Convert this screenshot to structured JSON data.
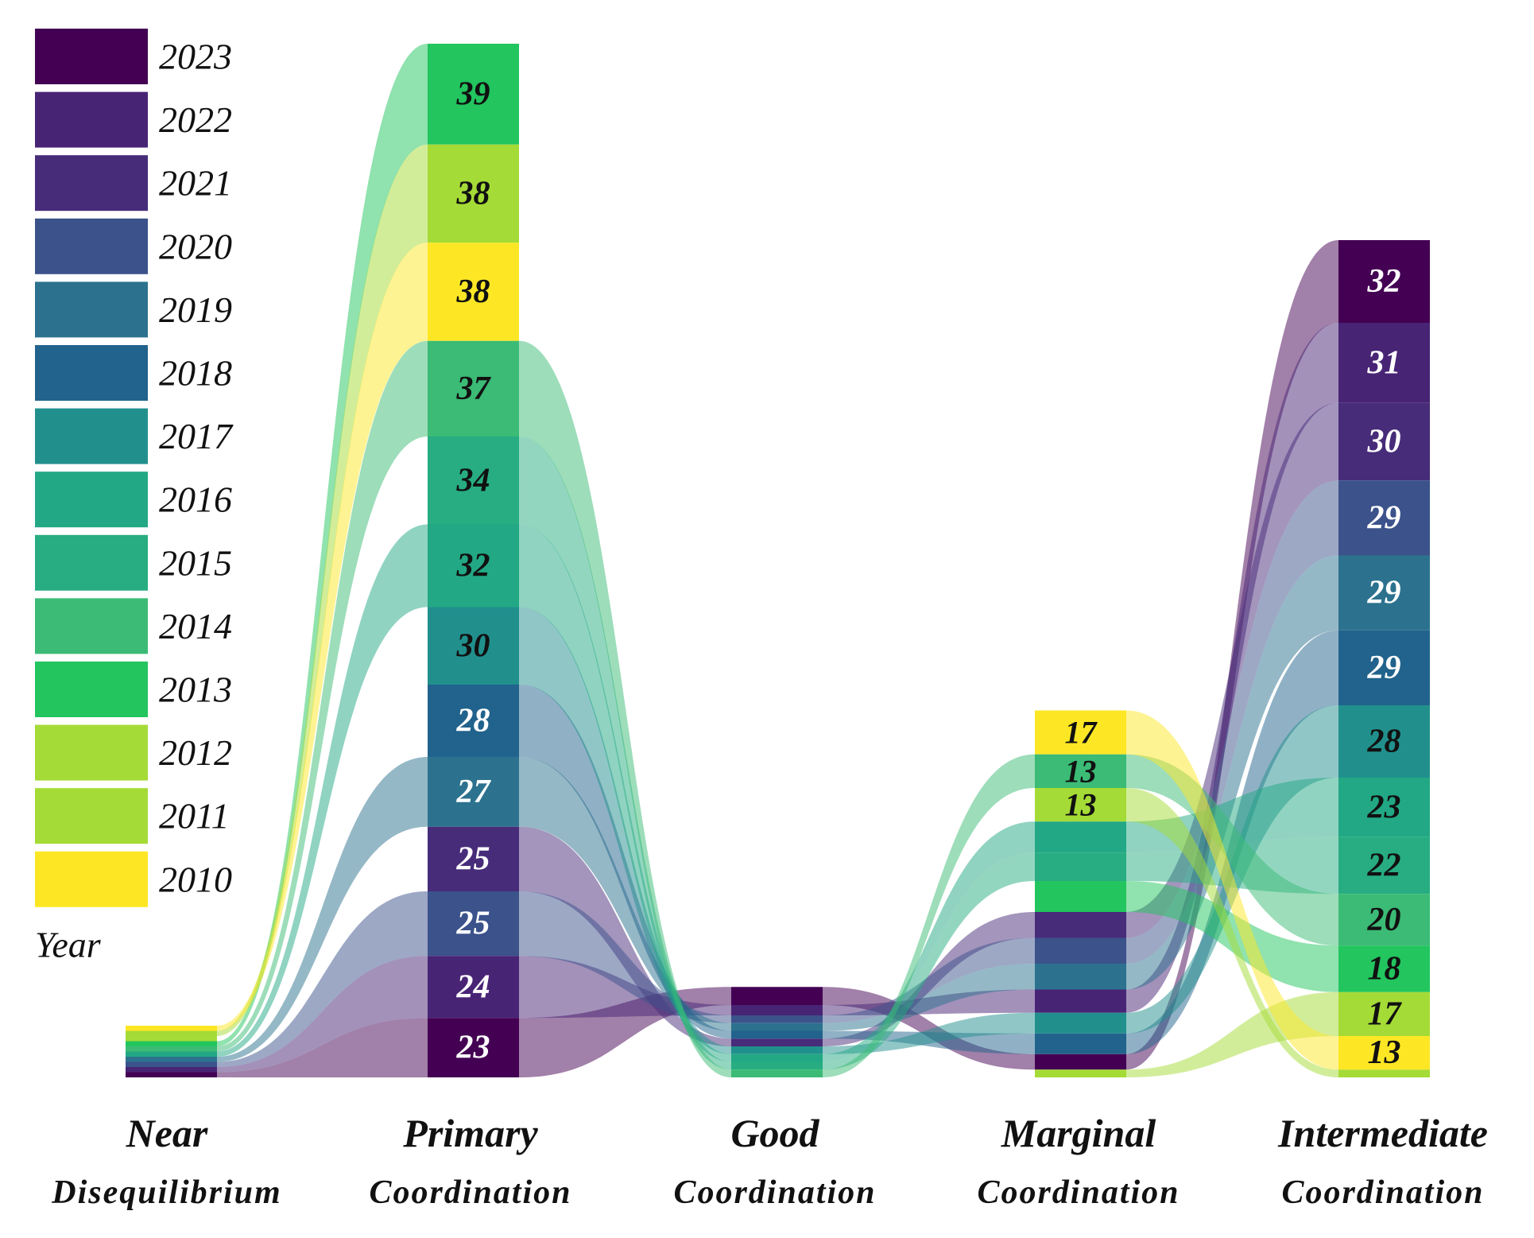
{
  "chart_data": {
    "type": "alluvial",
    "legend_title": "Year",
    "years": [
      "2023",
      "2022",
      "2021",
      "2020",
      "2019",
      "2018",
      "2017",
      "2016",
      "2015",
      "2014",
      "2013",
      "2012",
      "2011",
      "2010"
    ],
    "year_colors": {
      "2023": "#440154",
      "2022": "#482475",
      "2021": "#472c7a",
      "2020": "#3b528b",
      "2019": "#2c728e",
      "2018": "#21638c",
      "2017": "#21908d",
      "2016": "#22a884",
      "2015": "#27ad81",
      "2014": "#3bbb75",
      "2013": "#22c55e",
      "2012": "#a5db36",
      "2011": "#a5db36",
      "2010": "#fde725"
    },
    "categories": [
      {
        "line1": "Near",
        "line2": "Disequilibrium"
      },
      {
        "line1": "Primary",
        "line2": "Coordination"
      },
      {
        "line1": "Good",
        "line2": "Coordination"
      },
      {
        "line1": "Marginal",
        "line2": "Coordination"
      },
      {
        "line1": "Intermediate",
        "line2": "Coordination"
      }
    ],
    "nodes": [
      {
        "stage": 0,
        "segments": [
          {
            "year": "2010",
            "value": 2
          },
          {
            "year": "2012",
            "value": 2
          },
          {
            "year": "2011",
            "value": 2
          },
          {
            "year": "2013",
            "value": 2
          },
          {
            "year": "2014",
            "value": 2
          },
          {
            "year": "2016",
            "value": 2
          },
          {
            "year": "2019",
            "value": 2
          },
          {
            "year": "2020",
            "value": 2
          },
          {
            "year": "2022",
            "value": 2
          },
          {
            "year": "2023",
            "value": 2
          }
        ]
      },
      {
        "stage": 1,
        "segments": [
          {
            "year": "2013",
            "value": 39,
            "label": "39"
          },
          {
            "year": "2012",
            "value": 38,
            "label": "38"
          },
          {
            "year": "2010",
            "value": 38,
            "label": "38"
          },
          {
            "year": "2014",
            "value": 37,
            "label": "37"
          },
          {
            "year": "2015",
            "value": 34,
            "label": "34"
          },
          {
            "year": "2016",
            "value": 32,
            "label": "32"
          },
          {
            "year": "2017",
            "value": 30,
            "label": "30"
          },
          {
            "year": "2018",
            "value": 28,
            "label": "28"
          },
          {
            "year": "2019",
            "value": 27,
            "label": "27"
          },
          {
            "year": "2021",
            "value": 25,
            "label": "25"
          },
          {
            "year": "2020",
            "value": 25,
            "label": "25"
          },
          {
            "year": "2022",
            "value": 24,
            "label": "24"
          },
          {
            "year": "2023",
            "value": 23,
            "label": "23"
          }
        ]
      },
      {
        "stage": 2,
        "segments": [
          {
            "year": "2023",
            "value": 7
          },
          {
            "year": "2022",
            "value": 4
          },
          {
            "year": "2020",
            "value": 3
          },
          {
            "year": "2019",
            "value": 3
          },
          {
            "year": "2018",
            "value": 3
          },
          {
            "year": "2021",
            "value": 3
          },
          {
            "year": "2017",
            "value": 3
          },
          {
            "year": "2016",
            "value": 3
          },
          {
            "year": "2015",
            "value": 3
          },
          {
            "year": "2014",
            "value": 3
          }
        ]
      },
      {
        "stage": 3,
        "segments": [
          {
            "year": "2010",
            "value": 17,
            "label": "17"
          },
          {
            "year": "2014",
            "value": 13,
            "label": "13"
          },
          {
            "year": "2011",
            "value": 13,
            "label": "13"
          },
          {
            "year": "2016",
            "value": 12
          },
          {
            "year": "2015",
            "value": 11
          },
          {
            "year": "2013",
            "value": 12
          },
          {
            "year": "2021",
            "value": 10
          },
          {
            "year": "2020",
            "value": 10
          },
          {
            "year": "2019",
            "value": 10
          },
          {
            "year": "2022",
            "value": 9
          },
          {
            "year": "2017",
            "value": 8
          },
          {
            "year": "2018",
            "value": 8
          },
          {
            "year": "2023",
            "value": 6
          },
          {
            "year": "2012",
            "value": 3
          }
        ]
      },
      {
        "stage": 4,
        "segments": [
          {
            "year": "2023",
            "value": 32,
            "label": "32"
          },
          {
            "year": "2022",
            "value": 31,
            "label": "31"
          },
          {
            "year": "2021",
            "value": 30,
            "label": "30"
          },
          {
            "year": "2020",
            "value": 29,
            "label": "29"
          },
          {
            "year": "2019",
            "value": 29,
            "label": "29"
          },
          {
            "year": "2018",
            "value": 29,
            "label": "29"
          },
          {
            "year": "2017",
            "value": 28,
            "label": "28"
          },
          {
            "year": "2016",
            "value": 23,
            "label": "23"
          },
          {
            "year": "2015",
            "value": 22,
            "label": "22"
          },
          {
            "year": "2014",
            "value": 20,
            "label": "20"
          },
          {
            "year": "2013",
            "value": 18,
            "label": "18"
          },
          {
            "year": "2012",
            "value": 17,
            "label": "17"
          },
          {
            "year": "2010",
            "value": 13,
            "label": "13"
          },
          {
            "year": "2011",
            "value": 3
          }
        ]
      }
    ]
  }
}
